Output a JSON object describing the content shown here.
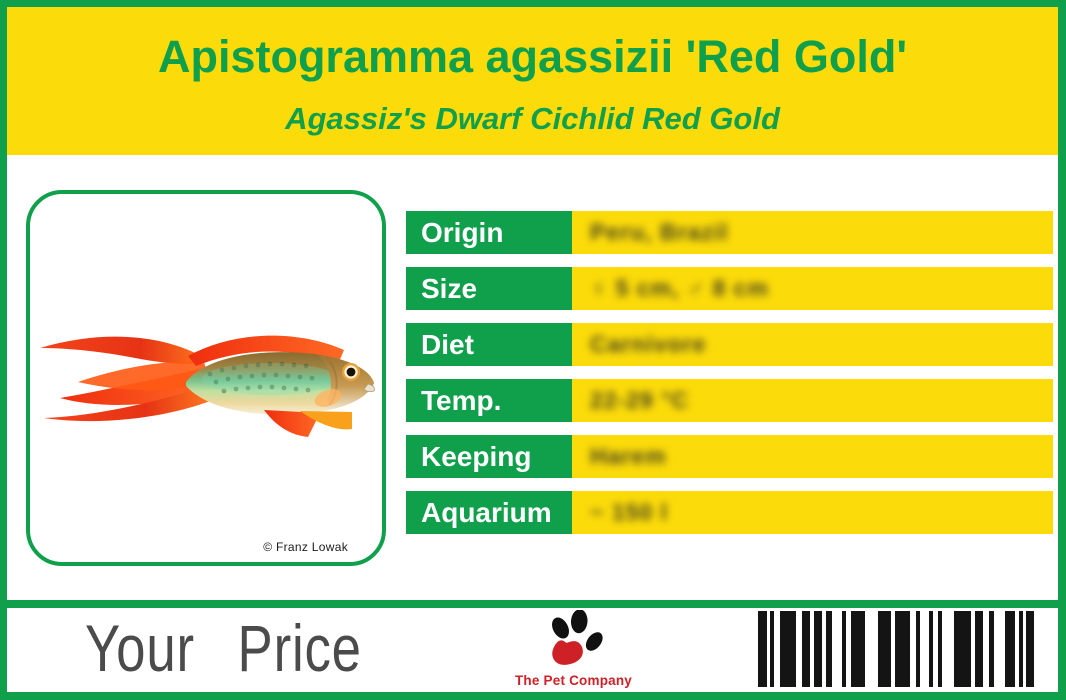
{
  "colors": {
    "green": "#10A04B",
    "yellow": "#FCDB0A",
    "red": "#CE2127",
    "dark": "#4B4B4B",
    "bar": "#141414"
  },
  "header": {
    "title": "Apistogramma agassizii 'Red Gold'",
    "subtitle": "Agassiz's Dwarf Cichlid Red Gold"
  },
  "photo": {
    "credit": "© Franz Lowak"
  },
  "table": {
    "rows": [
      {
        "label": "Origin",
        "value": "Peru, Brazil"
      },
      {
        "label": "Size",
        "value": "♀ 5 cm, ♂ 8 cm"
      },
      {
        "label": "Diet",
        "value": "Carnivore"
      },
      {
        "label": "Temp.",
        "value": "22-29 °C"
      },
      {
        "label": "Keeping",
        "value": "Harem"
      },
      {
        "label": "Aquarium",
        "value": "~ 150 l"
      }
    ]
  },
  "footer": {
    "price_label": "Your Price",
    "brand": "The Pet Company"
  },
  "barcode": {
    "bars": [
      [
        9,
        3
      ],
      [
        4,
        6
      ],
      [
        16,
        6
      ],
      [
        8,
        4
      ],
      [
        8,
        4
      ],
      [
        6,
        10
      ],
      [
        4,
        5
      ],
      [
        14,
        13
      ],
      [
        13,
        4
      ],
      [
        15,
        6
      ],
      [
        4,
        9
      ],
      [
        4,
        5
      ],
      [
        4,
        12
      ],
      [
        17,
        4
      ],
      [
        8,
        6
      ],
      [
        5,
        11
      ],
      [
        10,
        4
      ],
      [
        4,
        3
      ],
      [
        8,
        0
      ]
    ]
  }
}
